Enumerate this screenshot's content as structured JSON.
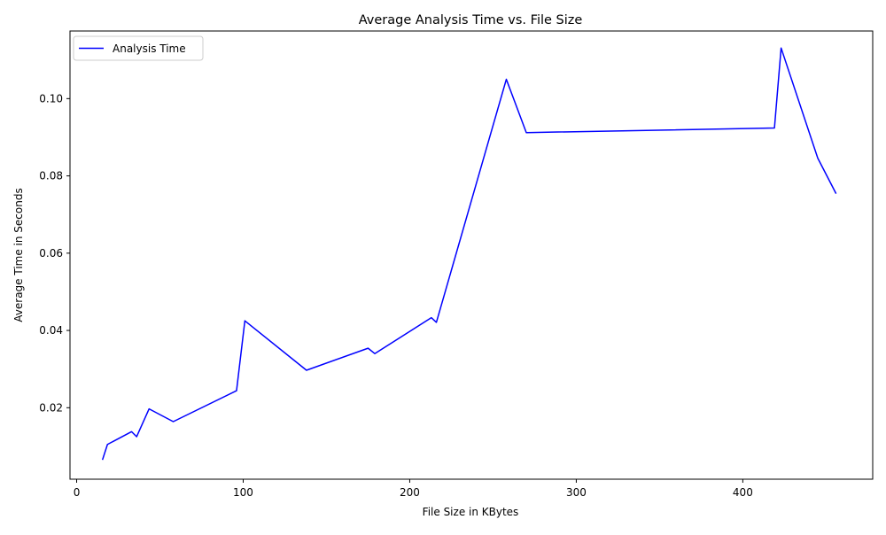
{
  "chart_data": {
    "type": "line",
    "title": "Average Analysis Time vs. File Size",
    "xlabel": "File Size in KBytes",
    "ylabel": "Average Time in Seconds",
    "xlim": [
      -4,
      478
    ],
    "ylim": [
      0.0015,
      0.1175
    ],
    "xticks": [
      0,
      100,
      200,
      300,
      400
    ],
    "yticks": [
      0.02,
      0.04,
      0.06,
      0.08,
      0.1
    ],
    "ytick_labels": [
      "0.02",
      "0.04",
      "0.06",
      "0.08",
      "0.10"
    ],
    "grid": false,
    "legend_position": "upper-left",
    "series": [
      {
        "name": "Analysis Time",
        "color": "#0000ff",
        "x": [
          15.5,
          18.5,
          33,
          36,
          43.5,
          58,
          96,
          101,
          138,
          175,
          179,
          213,
          216,
          258,
          270,
          419,
          423,
          445,
          456
        ],
        "y": [
          0.0065,
          0.0105,
          0.0138,
          0.0125,
          0.0197,
          0.0164,
          0.0244,
          0.0425,
          0.0297,
          0.0354,
          0.034,
          0.0433,
          0.0421,
          0.105,
          0.0912,
          0.0924,
          0.1131,
          0.0846,
          0.0754
        ]
      }
    ]
  }
}
